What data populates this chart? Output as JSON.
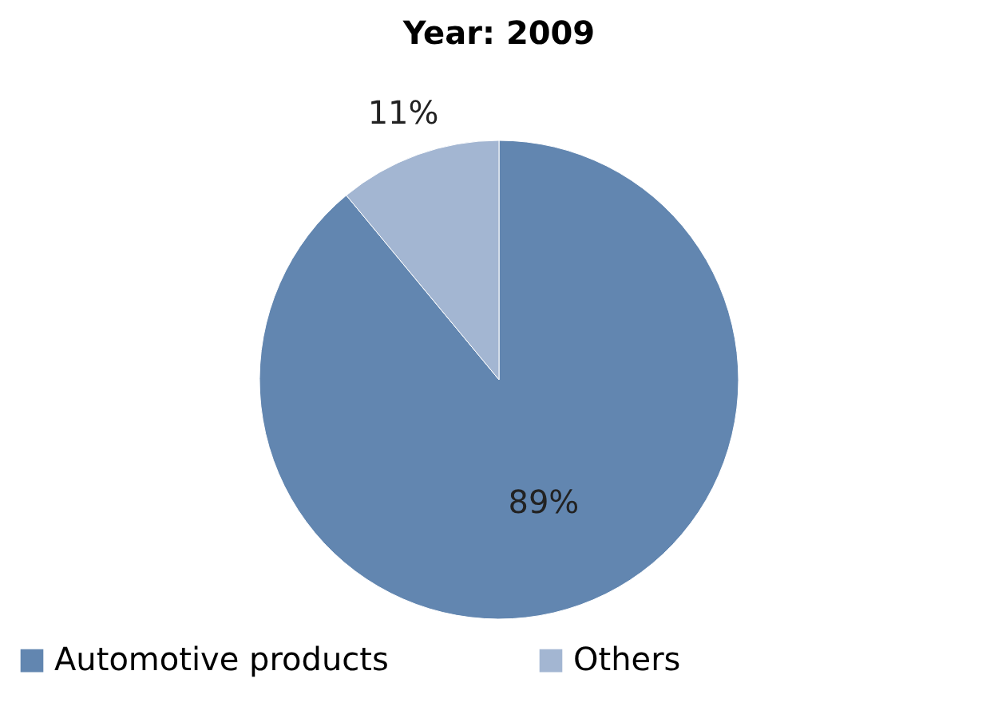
{
  "chart_data": {
    "type": "pie",
    "title": "Year: 2009",
    "categories": [
      "Automotive products",
      "Others"
    ],
    "values": [
      89,
      11
    ],
    "colors": [
      "#6286b0",
      "#a3b6d2"
    ],
    "value_labels": [
      "89%",
      "11%"
    ],
    "legend": "bottom"
  }
}
